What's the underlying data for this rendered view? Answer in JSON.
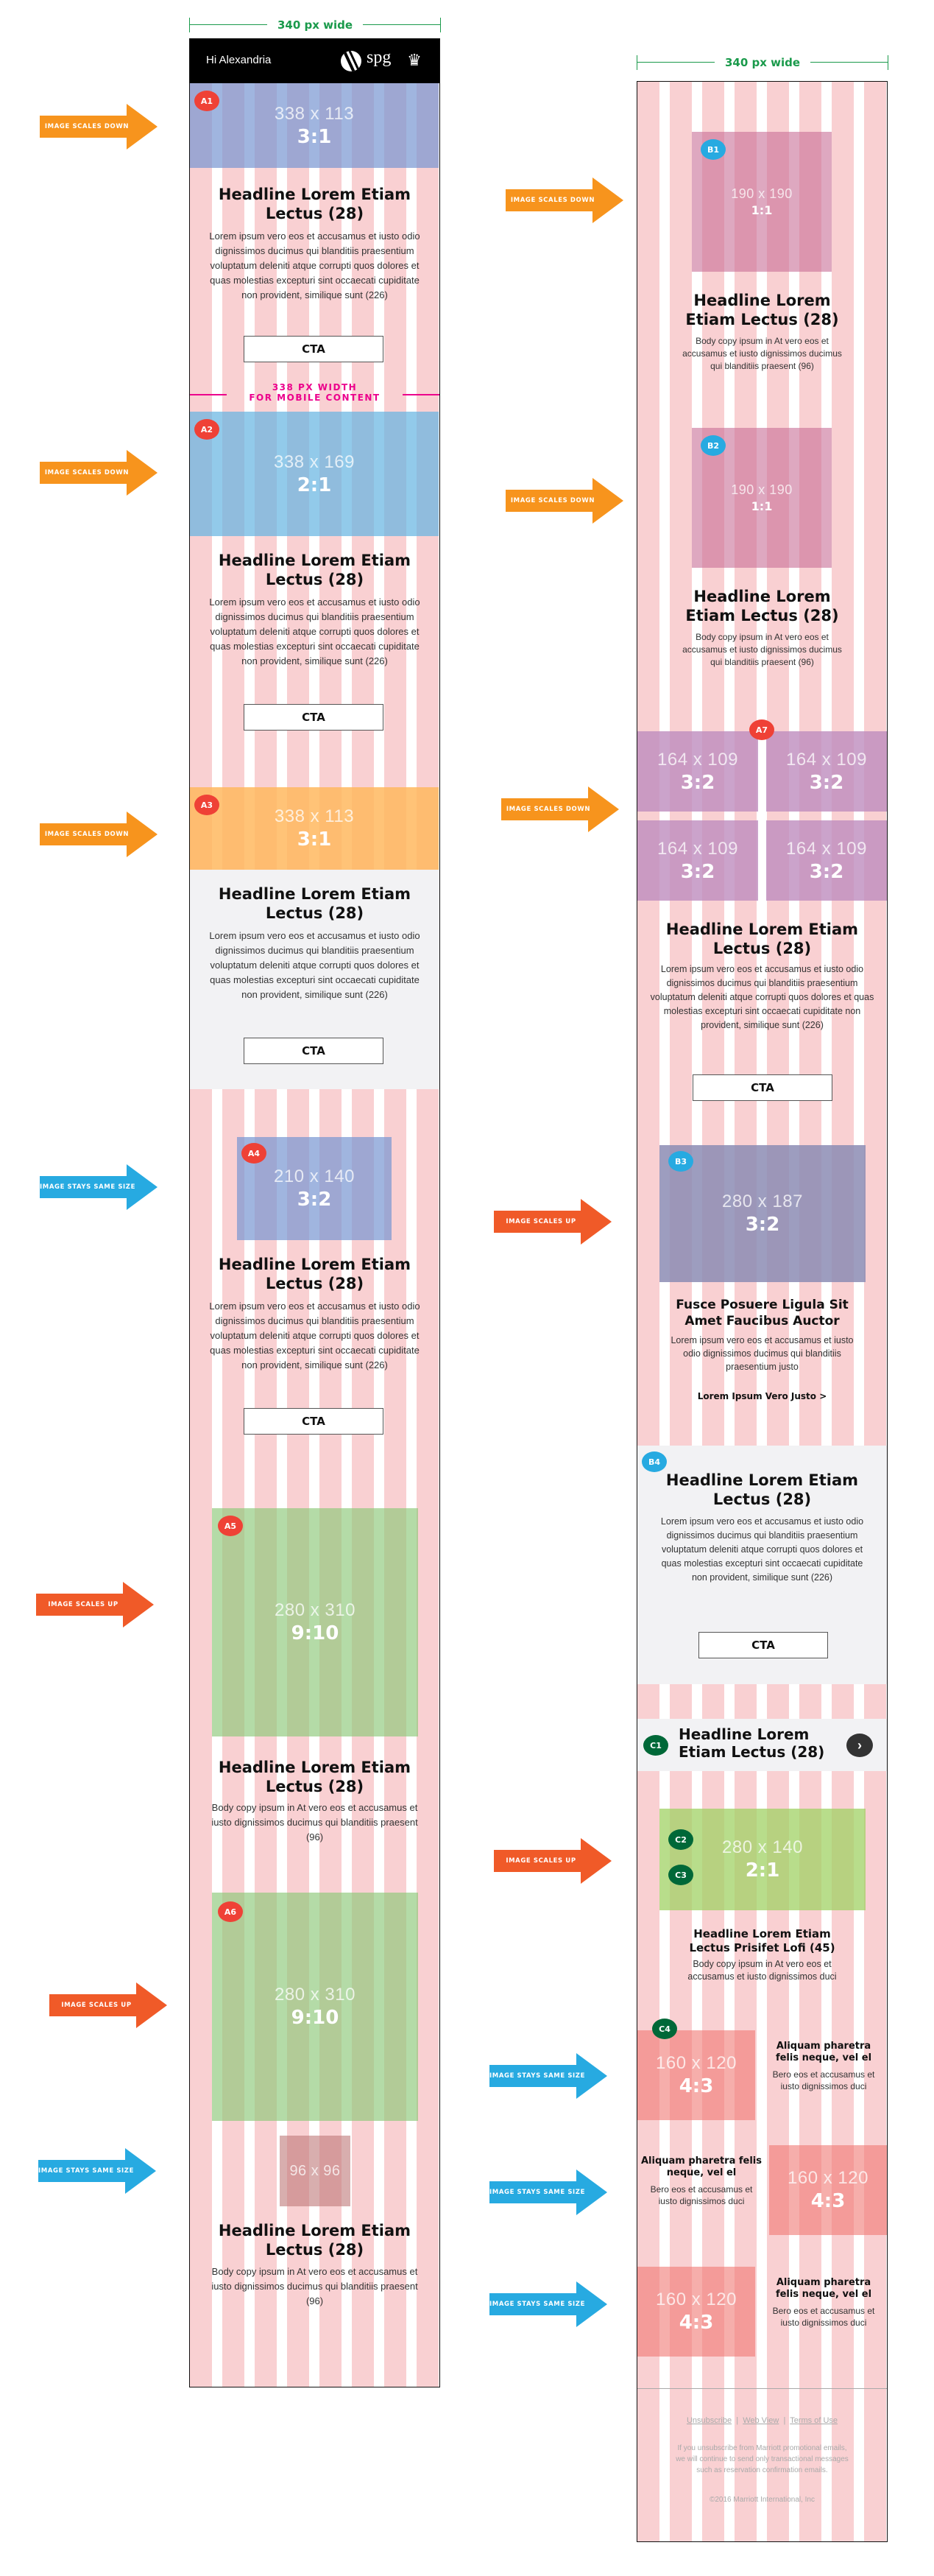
{
  "colors": {
    "grid_pink": "#f9d0d2",
    "badge_a": "#ef4136",
    "badge_b": "#27aae1",
    "badge_c": "#006838",
    "arrow_scales_down": "#f7941d",
    "arrow_scales_up": "#f05a28",
    "arrow_same_size": "#27aae1",
    "dimension_line": "#1a9a4b",
    "mobile_note": "#ec008c"
  },
  "left_panel": {
    "width_label": "340 px wide",
    "greeting": "Hi Alexandria",
    "logo_text": "spg",
    "mobile_note_line1": "338 PX WIDTH",
    "mobile_note_line2": "FOR MOBILE CONTENT",
    "blocks": [
      {
        "badge": "A1",
        "dims": "338 x 113",
        "ratio": "3:1",
        "headline": "Headline Lorem Etiam Lectus (28)",
        "body": "Lorem ipsum vero eos et accusamus et iusto odio dignissimos ducimus qui blanditiis praesentium voluptatum deleniti atque corrupti quos dolores et quas molestias excepturi sint occaecati cupiditate non provident, similique sunt (226)",
        "cta": "CTA"
      },
      {
        "badge": "A2",
        "dims": "338 x 169",
        "ratio": "2:1",
        "headline": "Headline Lorem Etiam Lectus (28)",
        "body": "Lorem ipsum vero eos et accusamus et iusto odio dignissimos ducimus qui blanditiis praesentium voluptatum deleniti atque corrupti quos dolores et quas molestias excepturi sint occaecati cupiditate non provident, similique sunt (226)",
        "cta": "CTA"
      },
      {
        "badge": "A3",
        "dims": "338 x 113",
        "ratio": "3:1",
        "headline": "Headline Lorem Etiam Lectus (28)",
        "body": "Lorem ipsum vero eos et accusamus et iusto odio dignissimos ducimus qui blanditiis praesentium voluptatum deleniti atque corrupti quos dolores et quas molestias excepturi sint occaecati cupiditate non provident, similique sunt (226)",
        "cta": "CTA"
      },
      {
        "badge": "A4",
        "dims": "210 x 140",
        "ratio": "3:2",
        "headline": "Headline Lorem Etiam Lectus (28)",
        "body": "Lorem ipsum vero eos et accusamus et iusto odio dignissimos ducimus qui blanditiis praesentium voluptatum deleniti atque corrupti quos dolores et quas molestias excepturi sint occaecati cupiditate non provident, similique sunt (226)",
        "cta": "CTA"
      },
      {
        "badge": "A5",
        "dims": "280 x 310",
        "ratio": "9:10",
        "headline": "Headline Lorem Etiam Lectus (28)",
        "body": "Body copy ipsum in At vero eos et accusamus et iusto dignissimos ducimus qui blanditiis praesent (96)"
      },
      {
        "badge": "A6",
        "dims": "280 x 310",
        "ratio": "9:10"
      },
      {
        "dims": "96 x 96",
        "headline": "Headline Lorem Etiam Lectus (28)",
        "body": "Body copy ipsum in At vero eos et accusamus et iusto dignissimos ducimus qui blanditiis praesent (96)"
      }
    ]
  },
  "right_panel": {
    "width_label": "340 px wide",
    "b1": {
      "badge": "B1",
      "dims": "190 x 190",
      "ratio": "1:1",
      "headline": "Headline Lorem Etiam Lectus (28)",
      "body": "Body copy ipsum in At vero eos et accusamus et iusto dignissimos ducimus qui blanditiis praesent (96)"
    },
    "b2": {
      "badge": "B2",
      "dims": "190 x 190",
      "ratio": "1:1",
      "headline": "Headline Lorem Etiam Lectus (28)",
      "body": "Body copy ipsum in At vero eos et accusamus et iusto dignissimos ducimus qui blanditiis praesent (96)"
    },
    "a7": {
      "badge": "A7",
      "tiles": [
        {
          "dims": "164 x 109",
          "ratio": "3:2"
        },
        {
          "dims": "164 x 109",
          "ratio": "3:2"
        },
        {
          "dims": "164 x 109",
          "ratio": "3:2"
        },
        {
          "dims": "164 x 109",
          "ratio": "3:2"
        }
      ],
      "headline": "Headline Lorem Etiam Lectus (28)",
      "body": "Lorem ipsum vero eos et accusamus et iusto odio dignissimos ducimus qui blanditiis praesentium voluptatum deleniti atque corrupti quos dolores et quas molestias excepturi sint occaecati cupiditate non provident, similique sunt (226)",
      "cta": "CTA"
    },
    "b3": {
      "badge": "B3",
      "dims": "280 x 187",
      "ratio": "3:2",
      "headline": "Fusce Posuere Ligula Sit Amet Faucibus Auctor",
      "body": "Lorem ipsum vero eos et accusamus et iusto odio dignissimos ducimus qui blanditiis praesentium justo",
      "link": "Lorem Ipsum Vero Justo >"
    },
    "b4": {
      "badge": "B4",
      "headline": "Headline Lorem Etiam Lectus (28)",
      "body": "Lorem ipsum vero eos et accusamus et iusto odio dignissimos ducimus qui blanditiis praesentium voluptatum deleniti atque corrupti quos dolores et quas molestias excepturi sint occaecati cupiditate non provident, similique sunt (226)",
      "cta": "CTA"
    },
    "c1": {
      "badge": "C1",
      "headline": "Headline Lorem Etiam Lectus (28)",
      "next_icon": "chevron-right-circle"
    },
    "c2": {
      "badge": "C2",
      "badge2": "C3",
      "dims": "280 x 140",
      "ratio": "2:1",
      "headline": "Headline Lorem Etiam Lectus Prisifet Lofi (45)",
      "body": "Body copy ipsum in At vero eos et accusamus et iusto dignissimos duci"
    },
    "c4": {
      "badge": "C4",
      "rows": [
        {
          "dims": "160 x 120",
          "ratio": "4:3",
          "headline": "Aliquam pharetra felis neque, vel el",
          "body": "Bero eos et accusamus et iusto dignissimos duci"
        },
        {
          "dims": "160 x 120",
          "ratio": "4:3",
          "headline": "Aliquam pharetra felis neque, vel el",
          "body": "Bero eos et accusamus et iusto dignissimos duci"
        },
        {
          "dims": "160 x 120",
          "ratio": "4:3",
          "headline": "Aliquam pharetra felis neque, vel el",
          "body": "Bero eos et accusamus et iusto dignissimos duci"
        }
      ]
    },
    "footer": {
      "links": [
        "Unsubscribe",
        "Web View",
        "Terms of Use"
      ],
      "separator": "|",
      "disclaimer": "If you unsubscribe from Marriott promotional emails, we will continue to send only transactional messages such as reservation confirmation emails.",
      "copyright": "©2016 Marriott International, Inc"
    }
  },
  "arrows": {
    "left": [
      "IMAGE SCALES DOWN",
      "IMAGE SCALES DOWN",
      "IMAGE SCALES DOWN",
      "IMAGE STAYS SAME SIZE",
      "IMAGE SCALES UP",
      "IMAGE SCALES UP",
      "IMAGE STAYS SAME SIZE"
    ],
    "right": [
      "IMAGE SCALES DOWN",
      "IMAGE SCALES DOWN",
      "IMAGE SCALES DOWN",
      "IMAGE SCALES UP",
      "IMAGE SCALES UP",
      "IMAGE STAYS SAME SIZE",
      "IMAGE STAYS SAME SIZE",
      "IMAGE STAYS SAME SIZE"
    ]
  }
}
